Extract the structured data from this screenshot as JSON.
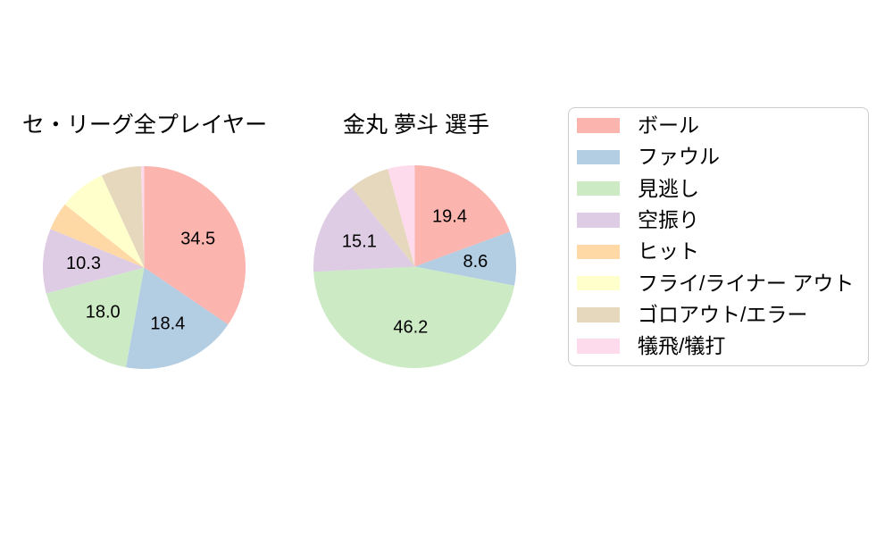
{
  "figure": {
    "background_color": "#ffffff",
    "legend_border_color": "#cccccc",
    "text_color": "#000000"
  },
  "chart_data": [
    {
      "type": "pie",
      "title": "セ・リーグ全プレイヤー",
      "start_angle": "12-oclock",
      "direction": "clockwise",
      "label_distance": 0.6,
      "categories": [
        "ボール",
        "ファウル",
        "見逃し",
        "空振り",
        "ヒット",
        "フライ/ライナー アウト",
        "ゴロアウト/エラー",
        "犠飛/犠打"
      ],
      "values": [
        34.5,
        18.4,
        18.0,
        10.3,
        4.5,
        7.4,
        6.4,
        0.5
      ],
      "pct_labels": [
        "34.5",
        "18.4",
        "18.0",
        "10.3",
        null,
        null,
        null,
        null
      ]
    },
    {
      "type": "pie",
      "title": "金丸 夢斗 選手",
      "start_angle": "12-oclock",
      "direction": "clockwise",
      "label_distance": 0.6,
      "categories": [
        "ボール",
        "ファウル",
        "見逃し",
        "空振り",
        "ヒット",
        "フライ/ライナー アウト",
        "ゴロアウト/エラー",
        "犠飛/犠打"
      ],
      "values": [
        19.4,
        8.6,
        46.2,
        15.1,
        0,
        0,
        6.4,
        4.3
      ],
      "pct_labels": [
        "19.4",
        "8.6",
        "46.2",
        "15.1",
        null,
        null,
        null,
        null
      ]
    }
  ],
  "legend": {
    "position": "right",
    "items": [
      {
        "id": "ball",
        "label": "ボール",
        "color": "#fbb4ae"
      },
      {
        "id": "foul",
        "label": "ファウル",
        "color": "#b3cde3"
      },
      {
        "id": "called-strike",
        "label": "見逃し",
        "color": "#ccebc5"
      },
      {
        "id": "swinging-strike",
        "label": "空振り",
        "color": "#decbe4"
      },
      {
        "id": "hit",
        "label": "ヒット",
        "color": "#fed9a6"
      },
      {
        "id": "fly-liner-out",
        "label": "フライ/ライナー アウト",
        "color": "#ffffcc"
      },
      {
        "id": "groundout-error",
        "label": "ゴロアウト/エラー",
        "color": "#e5d8bd"
      },
      {
        "id": "sac-fly-bunt",
        "label": "犠飛/犠打",
        "color": "#fddaec"
      }
    ]
  }
}
